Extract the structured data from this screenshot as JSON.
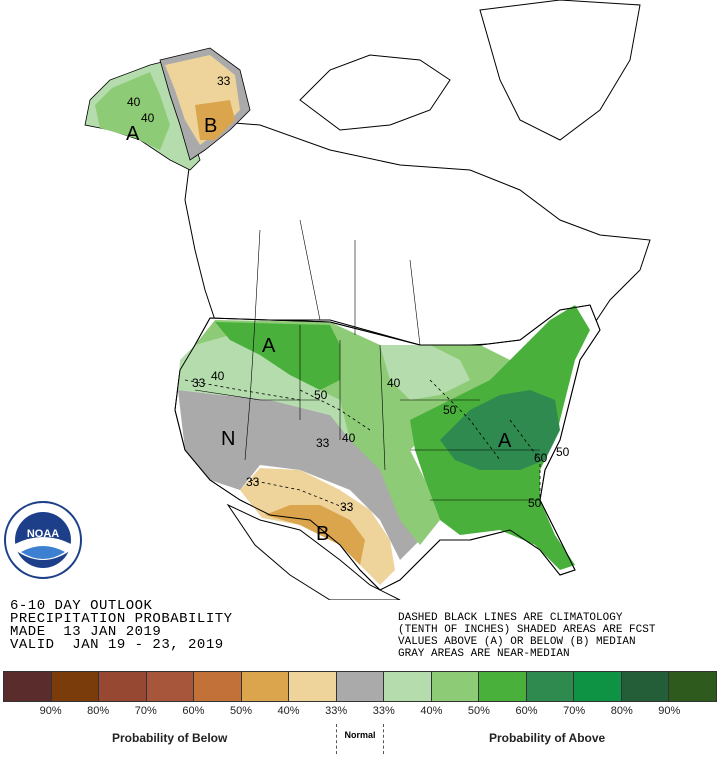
{
  "colors": {
    "below_90": "#5b2c2c",
    "below_80": "#7a3c0a",
    "below_70": "#974832",
    "below_60": "#a8563b",
    "below_50": "#c27238",
    "below_40": "#dba54e",
    "below_33": "#eed49a",
    "normal": "#aaaaaa",
    "above_33": "#b4dcac",
    "above_40": "#8ecb77",
    "above_50": "#4ab03c",
    "above_60": "#2f8a4f",
    "above_70": "#0e9244",
    "above_80": "#235e38",
    "above_90": "#2f5a1e",
    "land": "#ffffff",
    "lines": "#000000"
  },
  "title": {
    "line1": "6-10 DAY OUTLOOK",
    "line2": "PRECIPITATION PROBABILITY",
    "line3": "MADE  13 JAN 2019",
    "line4": "VALID  JAN 19 - 23, 2019"
  },
  "notes": {
    "line1": "DASHED BLACK LINES ARE CLIMATOLOGY",
    "line2": "(TENTH OF INCHES) SHADED AREAS ARE FCST",
    "line3": "VALUES ABOVE (A) OR BELOW (B) MEDIAN",
    "line4": "GRAY AREAS ARE NEAR-MEDIAN"
  },
  "logo": {
    "text": "NOAA"
  },
  "map_labels": {
    "alaska_a": "A",
    "alaska_b": "B",
    "alaska_33": "33",
    "alaska_40a": "40",
    "alaska_40b": "40",
    "pnw_a": "A",
    "nw_33": "33",
    "nw_40": "40",
    "n_50": "50",
    "west_n": "N",
    "c_33": "33",
    "c_40": "40",
    "sw_33a": "33",
    "sw_33b": "33",
    "sw_b": "B",
    "mw_40": "40",
    "mw_50": "50",
    "se_a": "A",
    "se_60": "60",
    "se_50a": "50",
    "se_50b": "50"
  },
  "legend": {
    "ticks": [
      "90%",
      "80%",
      "70%",
      "60%",
      "50%",
      "40%",
      "33%",
      "33%",
      "40%",
      "50%",
      "60%",
      "70%",
      "80%",
      "90%"
    ],
    "below_label": "Probability of Below",
    "normal_label": "Normal",
    "above_label": "Probability of Above"
  }
}
